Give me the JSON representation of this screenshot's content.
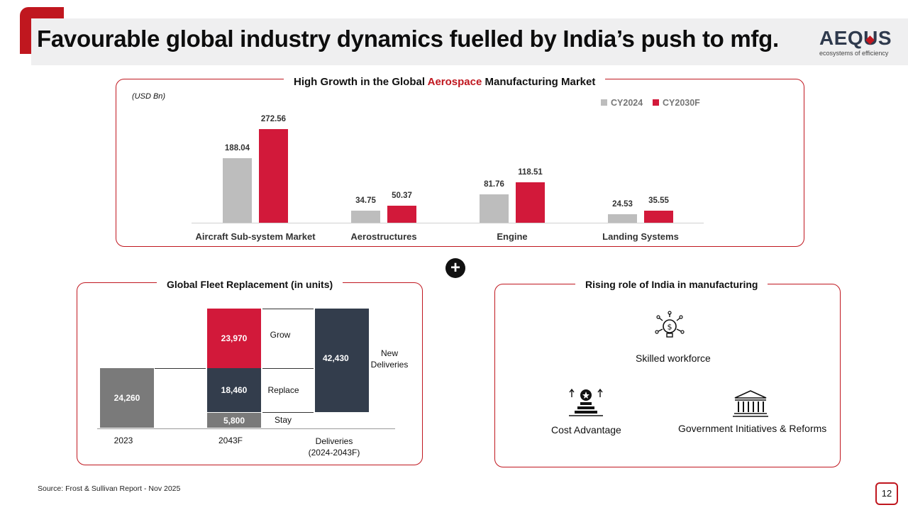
{
  "header": {
    "title": "Favourable global industry dynamics fuelled by India’s push to mfg.",
    "logo_text": "AEQUS",
    "logo_tagline": "ecosystems of efficiency"
  },
  "chart_data": [
    {
      "type": "bar",
      "title_prefix": "High Growth in the Global ",
      "title_highlight": "Aerospace",
      "title_suffix": " Manufacturing Market",
      "unit_label": "(USD Bn)",
      "categories": [
        "Aircraft Sub-system Market",
        "Aerostructures",
        "Engine",
        "Landing Systems"
      ],
      "series": [
        {
          "name": "CY2024",
          "values": [
            188.04,
            34.75,
            81.76,
            24.53
          ],
          "color": "#bdbdbd"
        },
        {
          "name": "CY2030F",
          "values": [
            272.56,
            50.37,
            118.51,
            35.55
          ],
          "color": "#d2193a"
        }
      ],
      "value_labels": [
        [
          "188.04",
          "34.75",
          "81.76",
          "24.53"
        ],
        [
          "272.56",
          "50.37",
          "118.51",
          "35.55"
        ]
      ],
      "ylim": [
        0,
        272.56
      ],
      "legend": "top-right"
    },
    {
      "type": "bar",
      "title": "Global Fleet Replacement (in units)",
      "categories": [
        "2023",
        "2043F",
        "Deliveries\n(2024-2043F)"
      ],
      "segments": [
        {
          "category": "2023",
          "name": "2023 fleet",
          "value": 24260,
          "label": "24,260",
          "color": "#7a7a7a"
        },
        {
          "category": "2043F",
          "name": "Stay",
          "value": 5800,
          "label": "5,800",
          "color": "#7a7a7a"
        },
        {
          "category": "2043F",
          "name": "Replace",
          "value": 18460,
          "label": "18,460",
          "color": "#333d4c"
        },
        {
          "category": "2043F",
          "name": "Grow",
          "value": 23970,
          "label": "23,970",
          "color": "#d2193a"
        },
        {
          "category": "Deliveries",
          "name": "New Deliveries",
          "value": 42430,
          "label": "42,430",
          "color": "#333d4c"
        }
      ],
      "annotations": [
        "Grow",
        "Replace",
        "Stay",
        "New\nDeliveries"
      ]
    }
  ],
  "india_panel": {
    "title": "Rising role of India in manufacturing",
    "items": [
      {
        "label": "Skilled workforce",
        "icon": "lightbulb-dollar-icon"
      },
      {
        "label": "Cost Advantage",
        "icon": "cost-advantage-icon"
      },
      {
        "label": "Government Initiatives & Reforms",
        "icon": "government-building-icon"
      }
    ]
  },
  "footer": {
    "source": "Source: Frost & Sullivan Report - Nov 2025",
    "page_number": "12"
  },
  "colors": {
    "accent": "#c0171f",
    "bar_red": "#d2193a",
    "bar_grey": "#bdbdbd",
    "navy": "#333d4c",
    "dark_grey": "#7a7a7a"
  }
}
